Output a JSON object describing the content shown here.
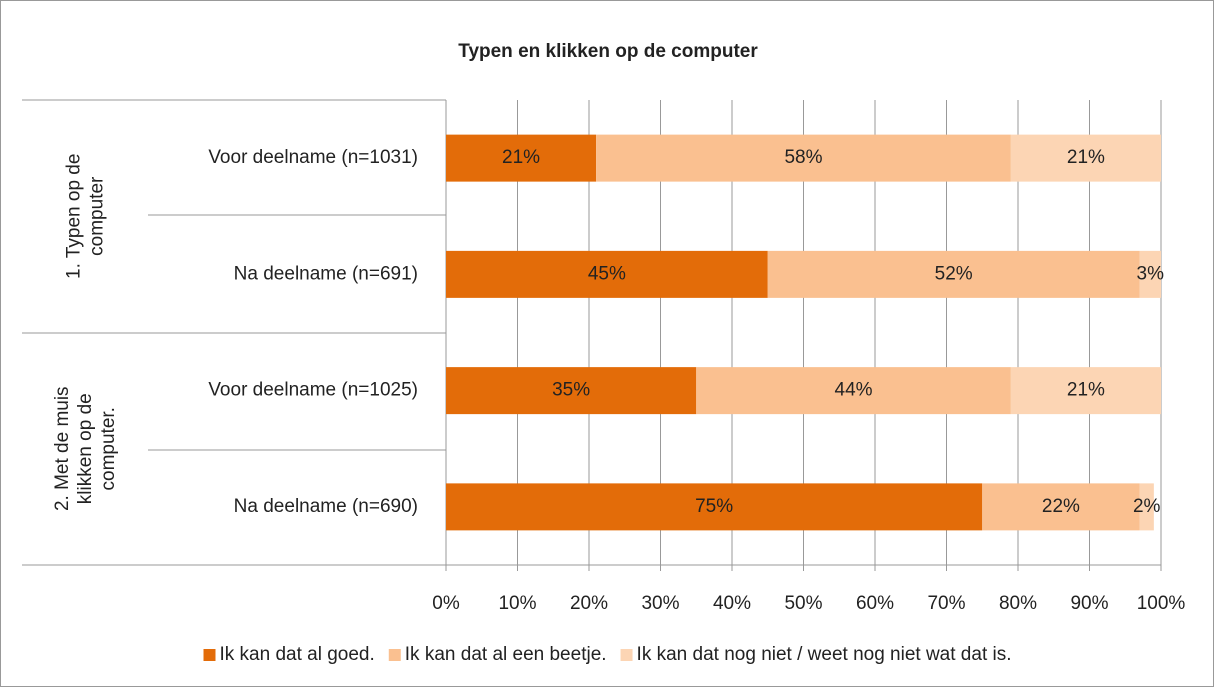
{
  "chart_data": {
    "type": "bar",
    "orientation": "horizontal",
    "stacked": true,
    "title": "Typen en klikken op de computer",
    "groups": [
      {
        "label": [
          "1. Typen op de",
          "computer"
        ]
      },
      {
        "label": [
          "2. Met de muis",
          "klikken op de",
          "computer."
        ]
      }
    ],
    "categories": [
      "Voor deelname (n=1031)",
      "Na deelname (n=691)",
      "Voor deelname (n=1025)",
      "Na deelname (n=690)"
    ],
    "series": [
      {
        "name": "Ik kan dat al goed.",
        "color": "#e36c09",
        "values": [
          21,
          45,
          35,
          75
        ],
        "value_labels": [
          "21%",
          "45%",
          "35%",
          "75%"
        ]
      },
      {
        "name": "Ik kan dat al een beetje.",
        "color": "#fac090",
        "values": [
          58,
          52,
          44,
          22
        ],
        "value_labels": [
          "58%",
          "52%",
          "44%",
          "22%"
        ]
      },
      {
        "name": "Ik kan dat nog niet / weet nog niet wat dat is.",
        "color": "#fcd5b4",
        "values": [
          21,
          3,
          21,
          2
        ],
        "value_labels": [
          "21%",
          "3%",
          "21%",
          "2%"
        ]
      }
    ],
    "xlim": [
      0,
      100
    ],
    "xticks": [
      {
        "value": 0,
        "label": "0%"
      },
      {
        "value": 10,
        "label": "10%"
      },
      {
        "value": 20,
        "label": "20%"
      },
      {
        "value": 30,
        "label": "30%"
      },
      {
        "value": 40,
        "label": "40%"
      },
      {
        "value": 50,
        "label": "50%"
      },
      {
        "value": 60,
        "label": "60%"
      },
      {
        "value": 70,
        "label": "70%"
      },
      {
        "value": 80,
        "label": "80%"
      },
      {
        "value": 90,
        "label": "90%"
      },
      {
        "value": 100,
        "label": "100%"
      }
    ],
    "grid": true,
    "legend": "bottom"
  }
}
